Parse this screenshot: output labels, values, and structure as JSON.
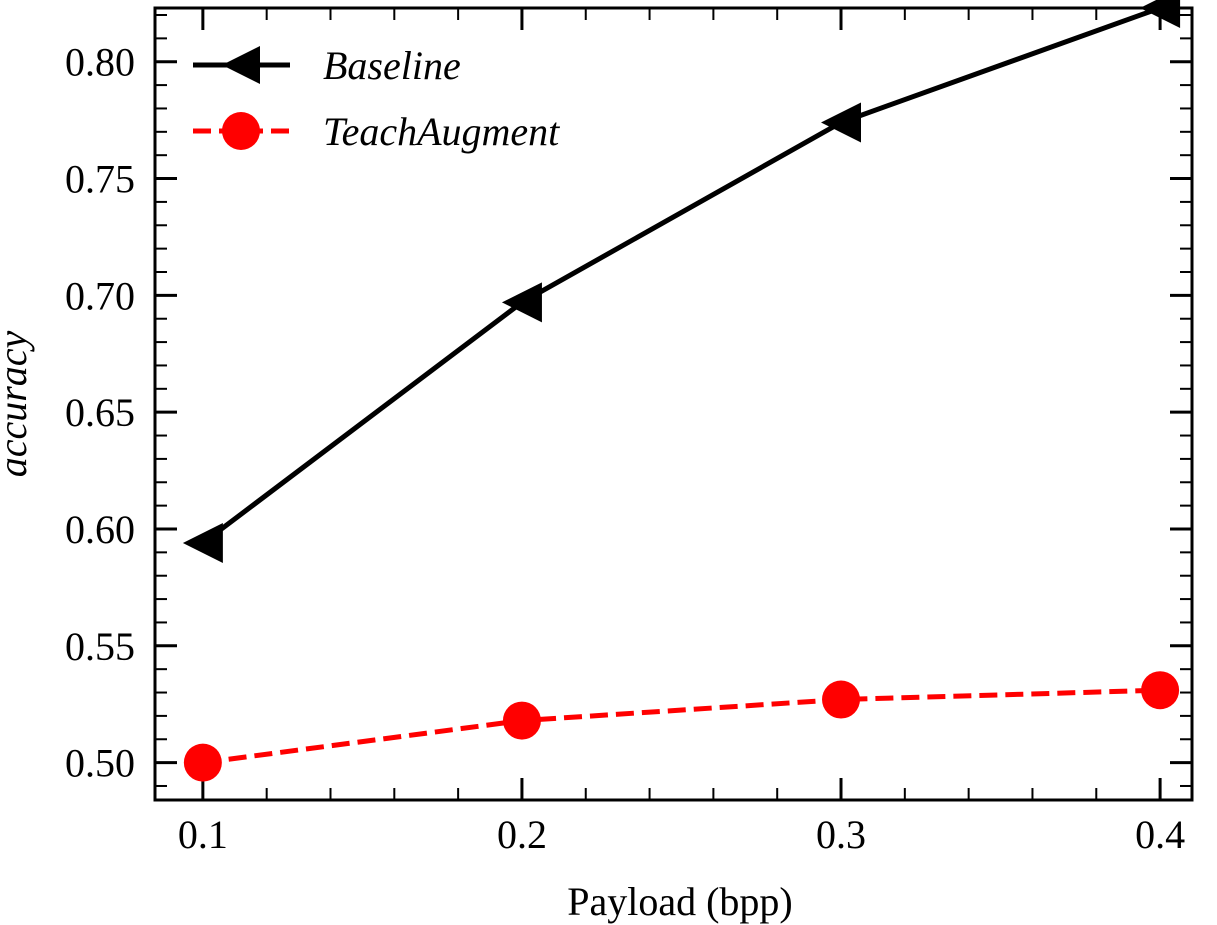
{
  "chart_data": {
    "type": "line",
    "title": "",
    "xlabel": "Payload (bpp)",
    "ylabel": "accuracy",
    "x": [
      0.1,
      0.2,
      0.3,
      0.4
    ],
    "x_ticks": [
      "0.1",
      "0.2",
      "0.3",
      "0.4"
    ],
    "y_ticks": [
      "0.50",
      "0.55",
      "0.60",
      "0.65",
      "0.70",
      "0.75",
      "0.80"
    ],
    "xlim": [
      0.085,
      0.41
    ],
    "ylim": [
      0.484,
      0.823
    ],
    "grid": false,
    "legend_position": "top-left",
    "series": [
      {
        "name": "Baseline",
        "values": [
          0.594,
          0.697,
          0.774,
          0.823
        ],
        "color": "#000000",
        "line_style": "solid",
        "marker": "triangle-left"
      },
      {
        "name": "TeachAugment",
        "values": [
          0.5,
          0.518,
          0.527,
          0.531
        ],
        "color": "#ff0000",
        "line_style": "dashed",
        "marker": "circle"
      }
    ]
  }
}
